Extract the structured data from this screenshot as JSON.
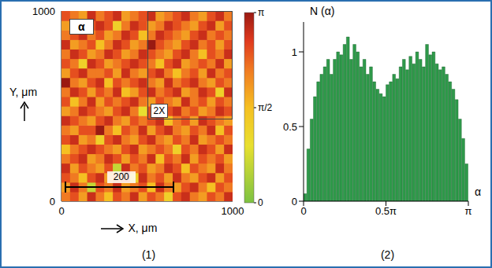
{
  "chart_data": [
    {
      "type": "heatmap",
      "label": "α",
      "panel_label": "(1)",
      "x_label": "X, μm",
      "y_label": "Y, μm",
      "xlim": [
        0,
        1000
      ],
      "xticks": [
        0,
        1000
      ],
      "ylim": [
        0,
        1000
      ],
      "yticks": [
        0,
        1000
      ],
      "cell_x": [
        25,
        75,
        125,
        175,
        225,
        275,
        325,
        375,
        425,
        475,
        525,
        575,
        625,
        675,
        725,
        775,
        825,
        875,
        925,
        975
      ],
      "cell_y": [
        25,
        75,
        125,
        175,
        225,
        275,
        325,
        375,
        425,
        475,
        525,
        575,
        625,
        675,
        725,
        775,
        825,
        875,
        925,
        975
      ],
      "cells": [
        [
          0.7,
          0.8,
          0.6,
          0.9,
          0.7,
          0.5,
          0.8,
          0.7,
          0.9,
          0.6,
          0.8,
          0.7,
          0.4,
          0.8,
          0.9,
          0.7,
          0.6,
          0.8,
          0.7,
          0.9
        ],
        [
          0.6,
          0.9,
          0.7,
          0.2,
          0.8,
          0.7,
          0.9,
          0.6,
          0.7,
          0.8,
          0.5,
          0.9,
          0.7,
          0.6,
          0.8,
          0.9,
          0.7,
          0.5,
          0.8,
          0.7
        ],
        [
          0.8,
          0.7,
          0.5,
          0.8,
          0.9,
          0.6,
          0.7,
          0.8,
          0.4,
          0.9,
          0.7,
          0.8,
          0.6,
          0.9,
          0.7,
          0.6,
          0.8,
          0.9,
          0.6,
          0.8
        ],
        [
          0.9,
          0.6,
          0.8,
          0.7,
          0.6,
          0.8,
          0.2,
          0.9,
          0.7,
          0.8,
          0.6,
          0.7,
          0.9,
          0.8,
          0.5,
          0.8,
          0.7,
          0.6,
          0.9,
          0.7
        ],
        [
          0.7,
          0.8,
          0.9,
          0.6,
          0.7,
          0.9,
          0.8,
          0.6,
          0.8,
          0.7,
          0.9,
          0.5,
          0.8,
          0.7,
          0.9,
          0.6,
          0.8,
          0.7,
          0.8,
          0.6
        ],
        [
          0.5,
          0.7,
          0.8,
          0.9,
          0.8,
          0.7,
          0.6,
          0.8,
          0.9,
          0.6,
          0.7,
          0.8,
          0.7,
          0.4,
          0.8,
          0.7,
          0.9,
          0.8,
          0.6,
          0.9
        ],
        [
          0.8,
          0.9,
          0.6,
          0.7,
          0.4,
          0.8,
          0.9,
          0.7,
          0.6,
          0.8,
          0.9,
          0.7,
          0.6,
          0.8,
          0.7,
          0.9,
          0.6,
          0.7,
          0.8,
          0.7
        ],
        [
          0.7,
          0.6,
          0.8,
          0.8,
          1.0,
          0.7,
          0.5,
          0.8,
          0.7,
          0.9,
          0.6,
          0.8,
          0.9,
          0.7,
          0.6,
          0.8,
          0.7,
          0.9,
          0.5,
          0.8
        ],
        [
          0.9,
          0.8,
          0.7,
          0.6,
          0.8,
          0.9,
          0.7,
          0.6,
          0.8,
          0.7,
          0.8,
          0.9,
          0.5,
          0.7,
          0.8,
          0.6,
          0.9,
          0.8,
          0.7,
          0.6
        ],
        [
          0.6,
          0.7,
          0.9,
          0.8,
          0.7,
          0.6,
          0.8,
          0.9,
          0.7,
          0.3,
          0.8,
          0.7,
          0.8,
          0.9,
          0.7,
          0.8,
          0.6,
          0.7,
          0.9,
          0.8
        ],
        [
          0.8,
          0.5,
          0.7,
          0.9,
          0.6,
          0.8,
          0.7,
          0.8,
          0.9,
          0.7,
          0.6,
          0.8,
          0.7,
          0.6,
          0.9,
          0.7,
          0.8,
          0.6,
          0.8,
          0.7
        ],
        [
          0.7,
          0.9,
          0.8,
          0.6,
          0.8,
          0.7,
          0.9,
          0.5,
          0.6,
          0.8,
          0.9,
          0.7,
          0.8,
          0.9,
          0.6,
          0.7,
          0.9,
          0.8,
          0.4,
          0.9
        ],
        [
          1.0,
          0.7,
          0.6,
          0.8,
          0.9,
          0.5,
          0.8,
          0.7,
          0.8,
          0.9,
          0.7,
          0.6,
          0.9,
          0.7,
          0.8,
          0.9,
          0.7,
          0.6,
          0.8,
          0.7
        ],
        [
          0.6,
          0.8,
          0.9,
          0.7,
          0.7,
          0.8,
          0.6,
          0.9,
          0.7,
          0.6,
          0.8,
          0.9,
          0.7,
          0.5,
          0.7,
          0.8,
          0.6,
          0.9,
          0.7,
          0.8
        ],
        [
          0.8,
          0.7,
          0.4,
          0.9,
          0.8,
          0.6,
          0.7,
          0.8,
          0.9,
          0.8,
          0.7,
          0.5,
          0.8,
          0.9,
          0.6,
          0.7,
          0.8,
          0.7,
          0.9,
          0.6
        ],
        [
          0.7,
          0.9,
          0.8,
          0.6,
          0.7,
          0.9,
          0.8,
          0.6,
          0.7,
          0.9,
          0.8,
          0.7,
          0.6,
          0.8,
          0.9,
          0.7,
          0.5,
          0.8,
          0.7,
          0.9
        ],
        [
          0.9,
          0.6,
          0.7,
          0.8,
          0.5,
          0.7,
          0.9,
          0.8,
          0.6,
          0.7,
          1.0,
          0.8,
          0.7,
          0.6,
          0.8,
          0.9,
          0.7,
          0.8,
          0.6,
          0.8
        ],
        [
          0.7,
          0.8,
          0.9,
          0.7,
          0.8,
          0.6,
          0.7,
          0.9,
          0.8,
          0.5,
          0.7,
          0.9,
          0.8,
          0.7,
          0.6,
          0.8,
          0.9,
          0.7,
          0.8,
          0.7
        ],
        [
          0.6,
          0.9,
          0.7,
          0.8,
          0.9,
          0.8,
          0.4,
          0.7,
          0.9,
          0.8,
          0.6,
          0.7,
          0.9,
          0.8,
          0.7,
          0.6,
          0.8,
          0.9,
          0.6,
          0.8
        ],
        [
          0.8,
          0.7,
          0.6,
          0.9,
          0.7,
          0.8,
          0.9,
          0.6,
          0.7,
          0.8,
          0.9,
          0.6,
          0.7,
          0.8,
          0.9,
          0.7,
          0.6,
          0.8,
          0.9,
          0.7
        ]
      ],
      "colorbar": {
        "range": [
          0,
          1
        ],
        "ticks": [
          0,
          {
            "value": 0.5,
            "label": "π/2"
          },
          {
            "value": 1,
            "label": "π"
          }
        ]
      },
      "inset": {
        "label": "2X",
        "x": [
          500,
          1000
        ],
        "y": [
          430,
          1000
        ]
      },
      "scale_bar": {
        "label": "200",
        "x": [
          20,
          660
        ],
        "y": 75
      }
    },
    {
      "type": "histogram",
      "panel_label": "(2)",
      "x_label": "α",
      "y_label": "N (α)",
      "color": "#2e9a4a",
      "bins": [
        0,
        0.02,
        0.04,
        0.06,
        0.08,
        0.1,
        0.12,
        0.14,
        0.16,
        0.18,
        0.2,
        0.22,
        0.24,
        0.26,
        0.28,
        0.3,
        0.32,
        0.34,
        0.36,
        0.38,
        0.4,
        0.42,
        0.44,
        0.46,
        0.48,
        0.5,
        0.52,
        0.54,
        0.56,
        0.58,
        0.6,
        0.62,
        0.64,
        0.66,
        0.68,
        0.7,
        0.72,
        0.74,
        0.76,
        0.78,
        0.8,
        0.82,
        0.84,
        0.86,
        0.88,
        0.9,
        0.92,
        0.94,
        0.96,
        0.98,
        1
      ],
      "values": [
        0.05,
        0.35,
        0.55,
        0.7,
        0.8,
        0.85,
        0.9,
        0.95,
        0.85,
        0.95,
        1.0,
        0.98,
        1.05,
        1.1,
        0.95,
        1.05,
        1.0,
        0.9,
        0.95,
        0.85,
        0.9,
        0.8,
        0.75,
        0.72,
        0.7,
        0.78,
        0.8,
        0.85,
        0.82,
        0.9,
        0.95,
        0.88,
        0.97,
        0.92,
        1.0,
        0.95,
        0.9,
        1.05,
        0.98,
        1.0,
        0.92,
        0.88,
        0.9,
        0.85,
        0.8,
        0.75,
        0.68,
        0.55,
        0.42,
        0.25
      ],
      "xlim": [
        0,
        1
      ],
      "xticks": [
        0,
        {
          "value": 0.5,
          "label": "0.5π"
        },
        {
          "value": 1,
          "label": "π"
        }
      ],
      "ylim": [
        0,
        1.2
      ],
      "yticks": [
        0,
        0.5,
        1
      ]
    }
  ]
}
